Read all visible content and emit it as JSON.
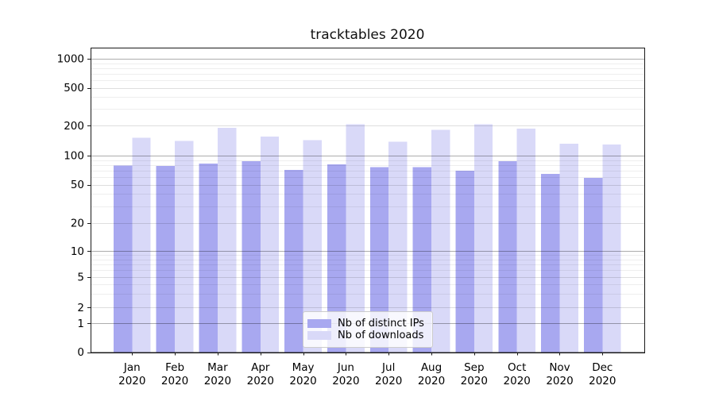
{
  "title": "tracktables 2020",
  "chart_data": {
    "type": "bar",
    "title": "tracktables 2020",
    "categories": [
      "Jan 2020",
      "Feb 2020",
      "Mar 2020",
      "Apr 2020",
      "May 2020",
      "Jun 2020",
      "Jul 2020",
      "Aug 2020",
      "Sep 2020",
      "Oct 2020",
      "Nov 2020",
      "Dec 2020"
    ],
    "category_line1": [
      "Jan",
      "Feb",
      "Mar",
      "Apr",
      "May",
      "Jun",
      "Jul",
      "Aug",
      "Sep",
      "Oct",
      "Nov",
      "Dec"
    ],
    "category_line2": "2020",
    "series": [
      {
        "name": "Nb of distinct IPs",
        "color": "#a8a8f0",
        "values": [
          79,
          78,
          83,
          88,
          71,
          81,
          76,
          76,
          70,
          88,
          65,
          59
        ]
      },
      {
        "name": "Nb of downloads",
        "color": "#d9d9f8",
        "values": [
          151,
          140,
          191,
          155,
          143,
          208,
          138,
          182,
          208,
          187,
          132,
          129
        ]
      }
    ],
    "xlabel": "",
    "ylabel": "",
    "yscale": "symlog",
    "yticks": [
      0,
      1,
      2,
      5,
      10,
      20,
      50,
      100,
      200,
      500,
      1000
    ],
    "ylim": [
      0,
      1300
    ],
    "grid": true,
    "legend_position": "lower center"
  },
  "colors": {
    "axis": "#1a1a1a",
    "grid_decade": "rgba(0,0,0,0.32)",
    "grid_submajor": "rgba(0,0,0,0.13)",
    "grid_minor": "rgba(0,0,0,0.065)",
    "background": "#ffffff",
    "text": "#000000"
  }
}
